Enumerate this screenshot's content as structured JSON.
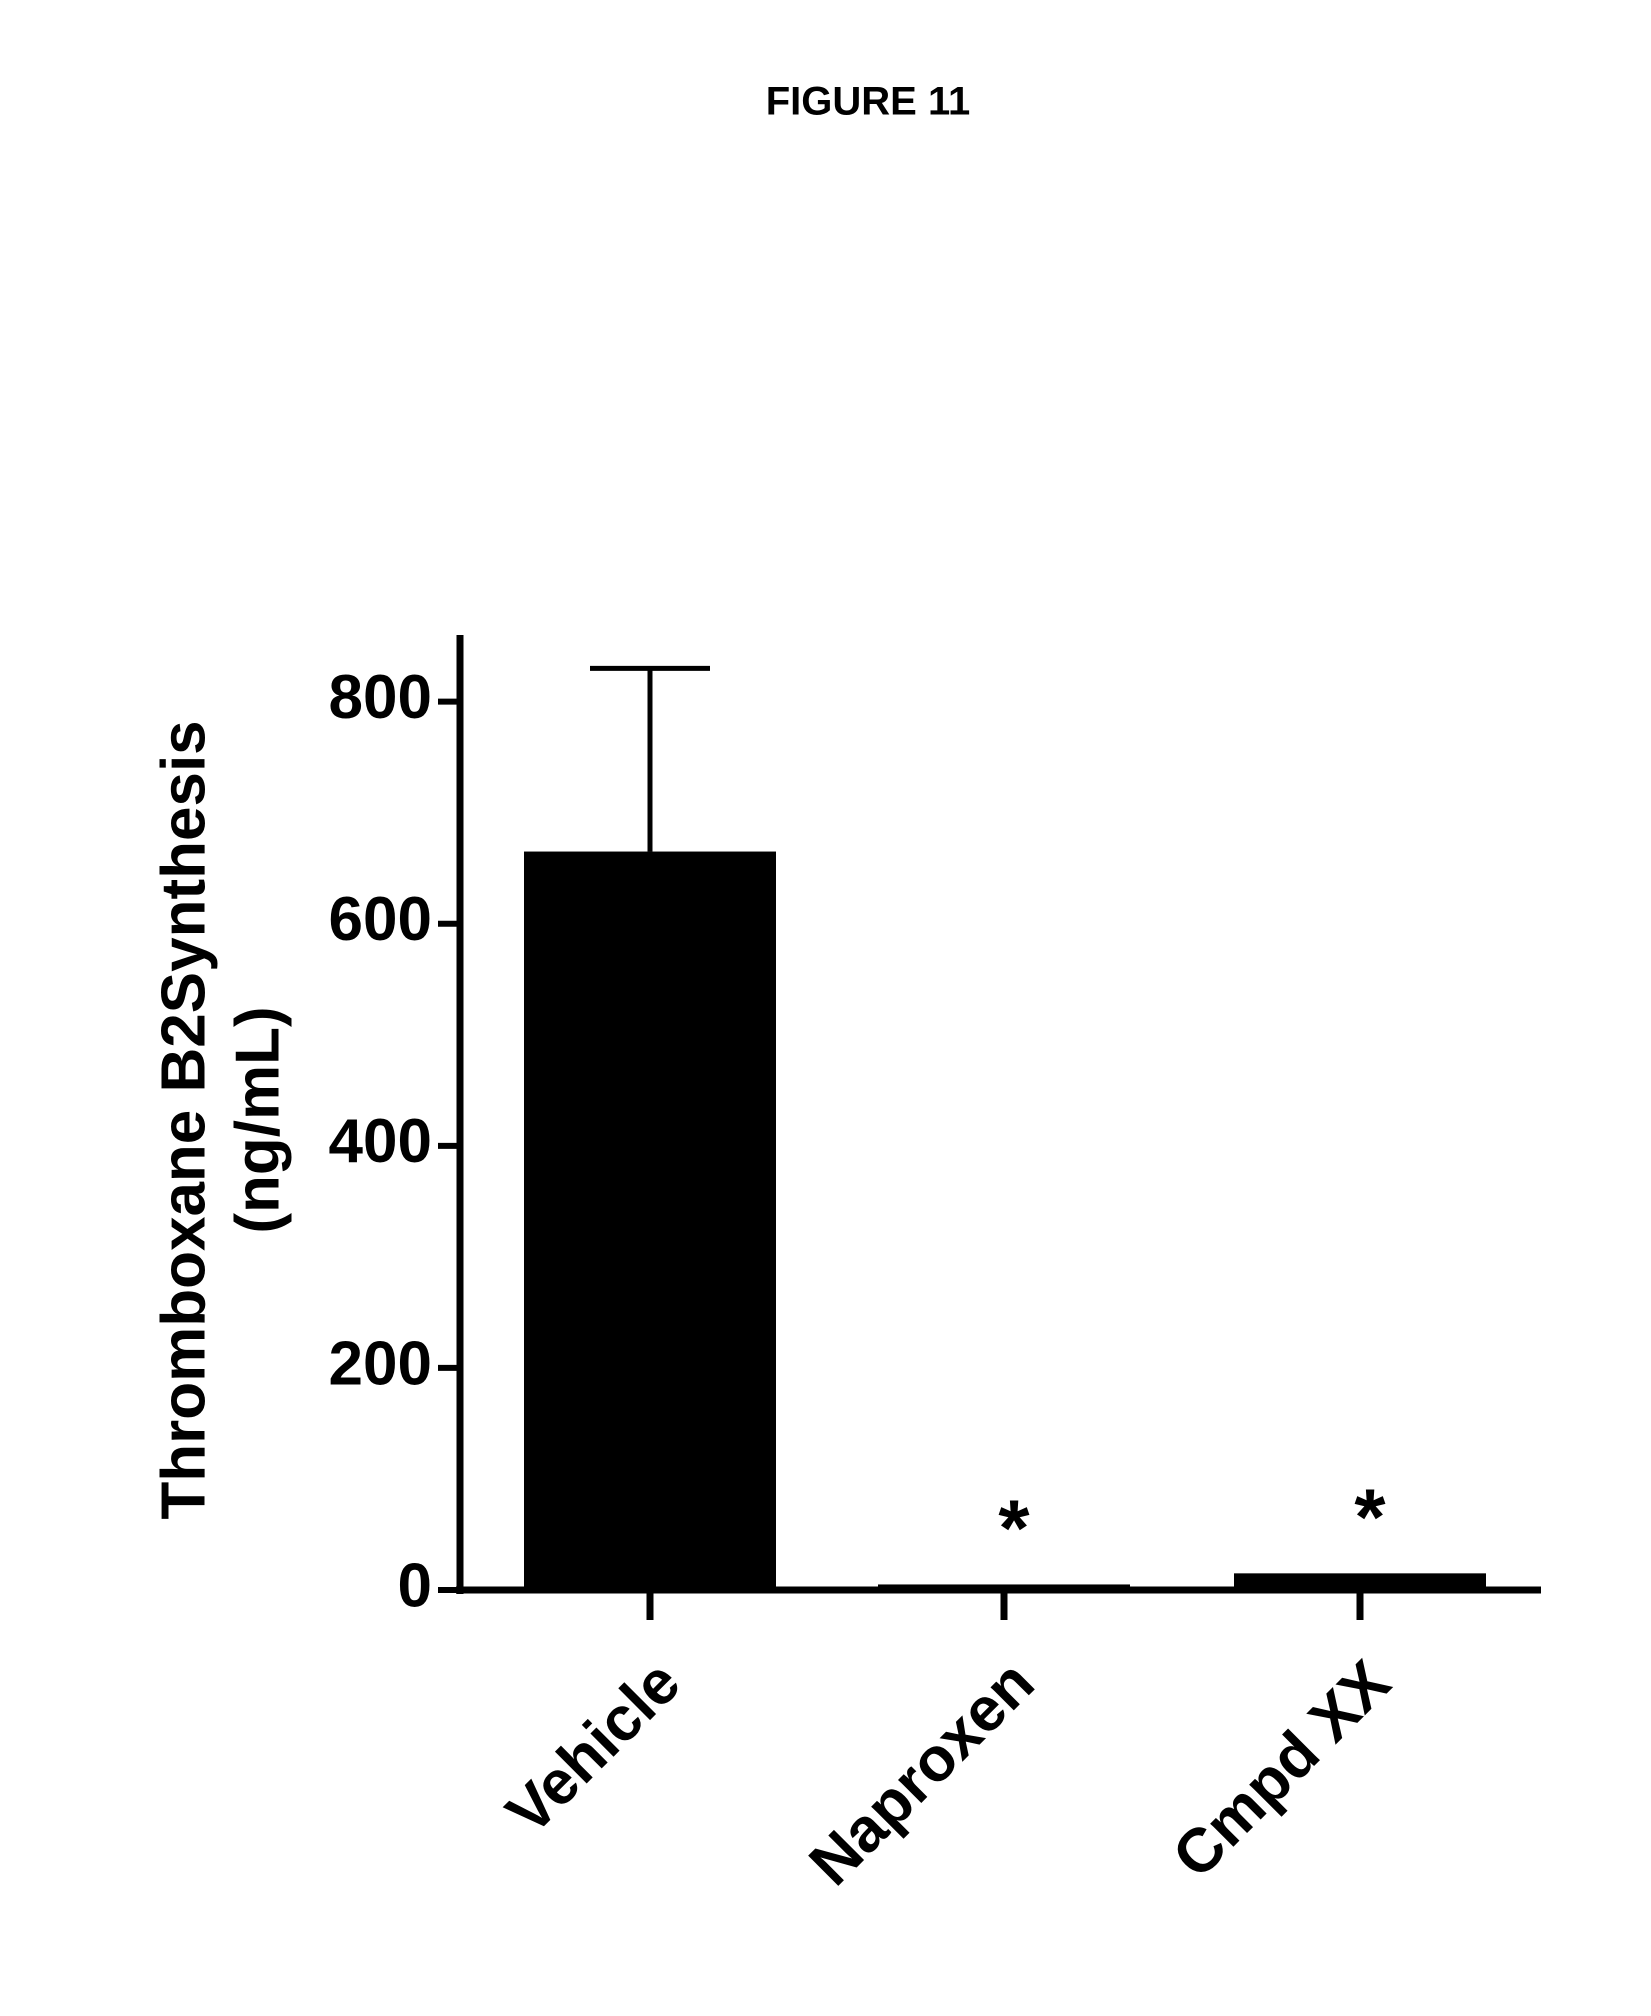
{
  "chart_data": {
    "type": "bar",
    "title": "FIGURE 11",
    "y_label": [
      "Thromboxane B2Synthesis",
      "(ng/mL)"
    ],
    "categories": [
      "Vehicle",
      "Naproxen",
      "Cmpd XX"
    ],
    "values": [
      665,
      5,
      15
    ],
    "errors": [
      165,
      null,
      null
    ],
    "annotations": [
      null,
      "*",
      "*"
    ],
    "color": "#000000",
    "ylim": [
      0,
      860
    ],
    "yticks": [
      0,
      200,
      400,
      600,
      800
    ],
    "grid": false
  }
}
